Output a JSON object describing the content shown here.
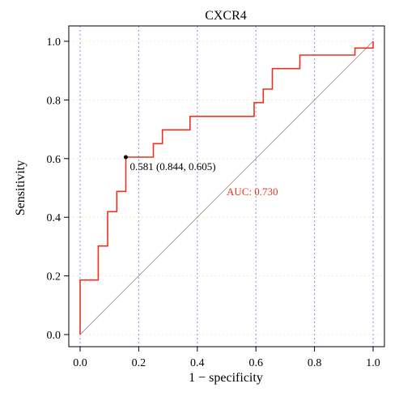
{
  "chart_data": {
    "type": "line",
    "title": "CXCR4",
    "xlabel": "1 − specificity",
    "ylabel": "Sensitivity",
    "xlim": [
      0,
      1
    ],
    "ylim": [
      0,
      1
    ],
    "xticks": [
      "0.0",
      "0.2",
      "0.4",
      "0.6",
      "0.8",
      "1.0"
    ],
    "yticks": [
      "0.0",
      "0.2",
      "0.4",
      "0.6",
      "0.8",
      "1.0"
    ],
    "tick_values": [
      0,
      0.2,
      0.4,
      0.6,
      0.8,
      1.0
    ],
    "grid": true,
    "series": [
      {
        "color": "#e8331f",
        "x": [
          0,
          0,
          0.062,
          0.062,
          0.094,
          0.094,
          0.125,
          0.125,
          0.156,
          0.156,
          0.25,
          0.25,
          0.281,
          0.281,
          0.375,
          0.375,
          0.594,
          0.594,
          0.625,
          0.625,
          0.656,
          0.656,
          0.75,
          0.75,
          0.938,
          0.938,
          1.0,
          1.0
        ],
        "y": [
          0,
          0.186,
          0.186,
          0.302,
          0.302,
          0.419,
          0.419,
          0.488,
          0.488,
          0.605,
          0.605,
          0.651,
          0.651,
          0.698,
          0.698,
          0.744,
          0.744,
          0.791,
          0.791,
          0.837,
          0.837,
          0.907,
          0.907,
          0.953,
          0.953,
          0.977,
          0.977,
          1.0
        ]
      }
    ],
    "reference_line": {
      "x": [
        0,
        1
      ],
      "y": [
        0,
        1
      ],
      "color": "#a0a0a0"
    },
    "best_point": {
      "x": 0.156,
      "y": 0.605,
      "label": "0.581 (0.844, 0.605)"
    },
    "auc_label": "AUC: 0.730",
    "auc_color": "#e8331f",
    "grid_color_vertical": "#8c8cf0",
    "grid_color_horizontal": "#e8f0c0"
  }
}
